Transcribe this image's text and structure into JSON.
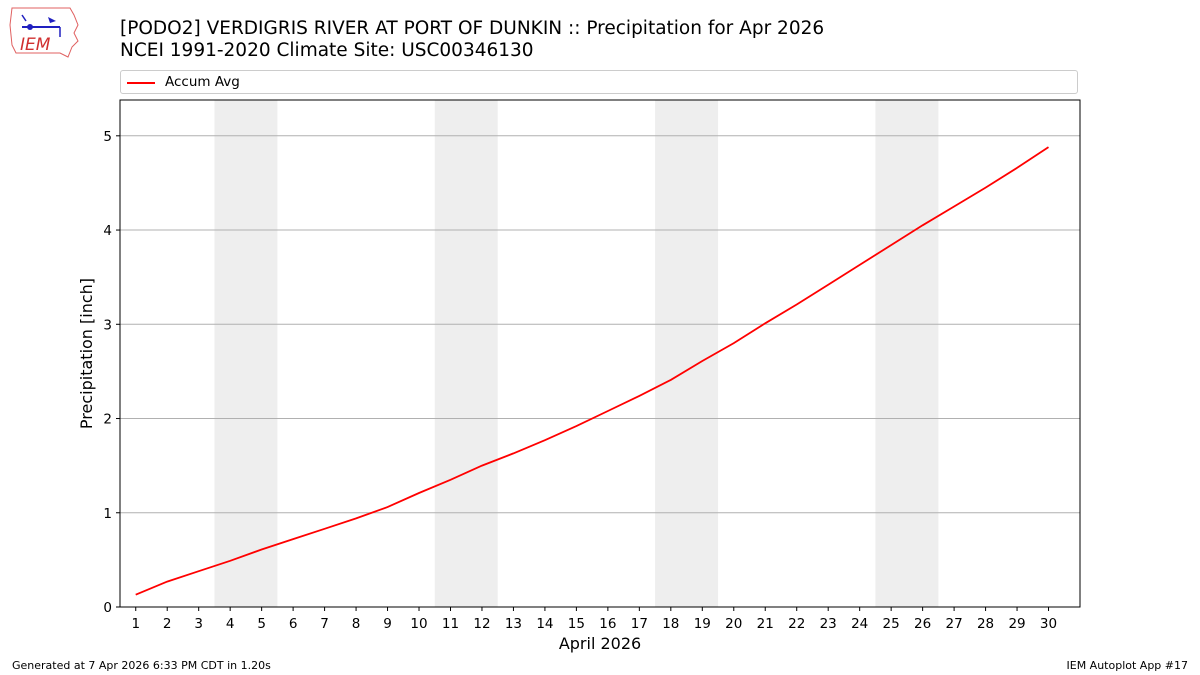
{
  "header": {
    "title_line1": "[PODO2] VERDIGRIS RIVER  AT PORT OF DUNKIN :: Precipitation for Apr 2026",
    "title_line2": "NCEI 1991-2020 Climate Site: USC00346130"
  },
  "logo": {
    "text": "IEM",
    "icon": "iem-iowa-logo"
  },
  "footer": {
    "generated": "Generated at 7 Apr 2026 6:33 PM CDT in 1.20s",
    "app": "IEM Autoplot App #17"
  },
  "colors": {
    "line": "#ff0000",
    "weekend_band": "#eeeeee",
    "grid": "#b0b0b0"
  },
  "chart_data": {
    "type": "line",
    "title": "[PODO2] VERDIGRIS RIVER  AT PORT OF DUNKIN :: Precipitation for Apr 2026",
    "subtitle": "NCEI 1991-2020 Climate Site: USC00346130",
    "xlabel": "April 2026",
    "ylabel": "Precipitation [inch]",
    "xlim": [
      0.5,
      31
    ],
    "ylim": [
      0,
      5.38
    ],
    "xticks": [
      1,
      2,
      3,
      4,
      5,
      6,
      7,
      8,
      9,
      10,
      11,
      12,
      13,
      14,
      15,
      16,
      17,
      18,
      19,
      20,
      21,
      22,
      23,
      24,
      25,
      26,
      27,
      28,
      29,
      30
    ],
    "yticks": [
      0,
      1,
      2,
      3,
      4,
      5
    ],
    "grid": "y",
    "legend_position": "top",
    "weekend_bands": [
      [
        3.5,
        5.5
      ],
      [
        10.5,
        12.5
      ],
      [
        17.5,
        19.5
      ],
      [
        24.5,
        26.5
      ]
    ],
    "series": [
      {
        "name": "Accum Avg",
        "x": [
          1,
          2,
          3,
          4,
          5,
          6,
          7,
          8,
          9,
          10,
          11,
          12,
          13,
          14,
          15,
          16,
          17,
          18,
          19,
          20,
          21,
          22,
          23,
          24,
          25,
          26,
          27,
          28,
          29,
          30
        ],
        "values": [
          0.13,
          0.27,
          0.38,
          0.49,
          0.61,
          0.72,
          0.83,
          0.94,
          1.06,
          1.21,
          1.35,
          1.5,
          1.63,
          1.77,
          1.92,
          2.08,
          2.24,
          2.41,
          2.61,
          2.8,
          3.01,
          3.21,
          3.42,
          3.63,
          3.84,
          4.05,
          4.25,
          4.45,
          4.66,
          4.88
        ]
      }
    ]
  }
}
